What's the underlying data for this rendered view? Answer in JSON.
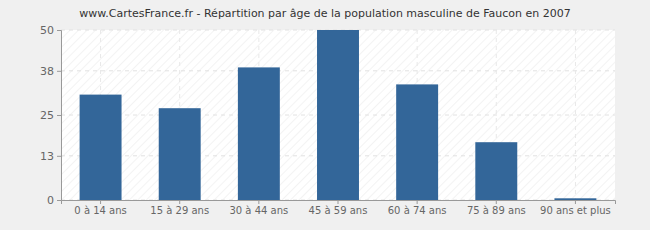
{
  "chart_data": {
    "type": "bar",
    "title": "www.CartesFrance.fr - Répartition par âge de la population masculine de Faucon en 2007",
    "categories": [
      "0 à 14 ans",
      "15 à 29 ans",
      "30 à 44 ans",
      "45 à 59 ans",
      "60 à 74 ans",
      "75 à 89 ans",
      "90 ans et plus"
    ],
    "values": [
      31,
      27,
      39,
      50,
      34,
      17,
      0.5
    ],
    "color": "#336699",
    "ylim": [
      0,
      50
    ],
    "yticks": [
      0,
      13,
      25,
      38,
      50
    ],
    "grid": true
  }
}
